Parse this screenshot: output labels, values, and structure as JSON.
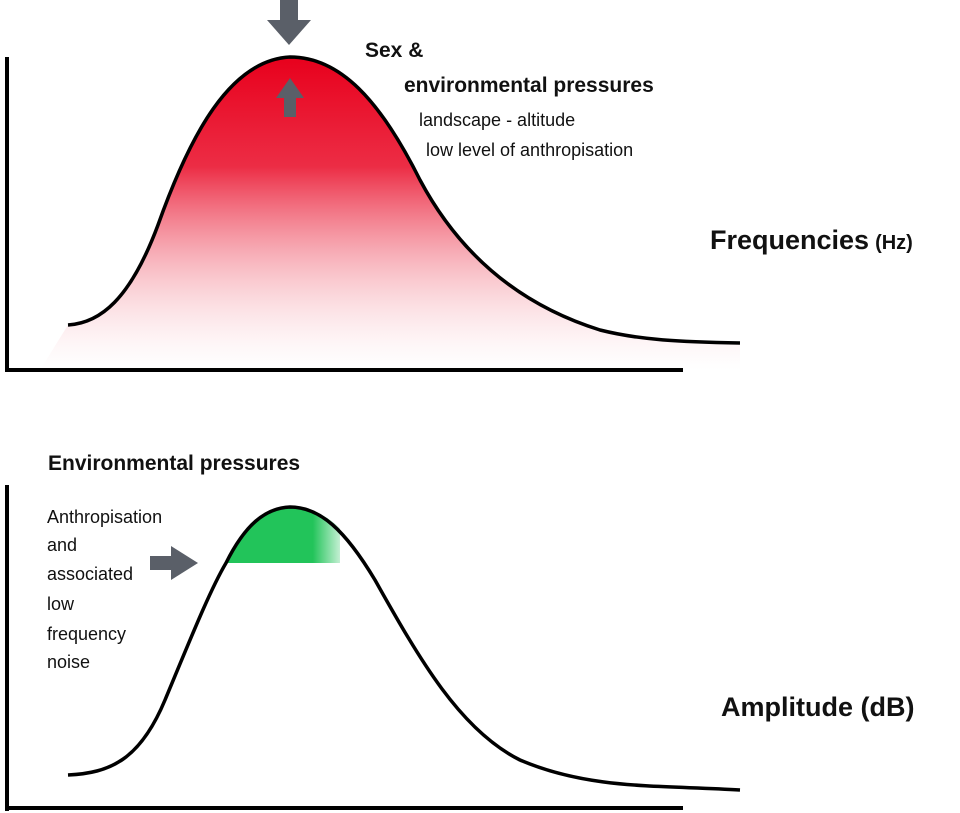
{
  "top_panel": {
    "annotation_title_line1": "Sex &",
    "annotation_title_line2": "environmental pressures",
    "sub_line1": "landscape - altitude",
    "sub_line2": "low level of anthropisation",
    "axis_label_main": "Frequencies",
    "axis_label_unit": "(Hz)",
    "fill_color": "#e8001c"
  },
  "bottom_panel": {
    "heading": "Environmental pressures",
    "note_lines": [
      "Anthropisation",
      "and",
      "associated",
      "low",
      "frequency",
      "noise"
    ],
    "axis_label": "Amplitude (dB)",
    "fill_color": "#22c45a"
  },
  "arrow_color": "#5a5f68",
  "curve_color": "#000000"
}
